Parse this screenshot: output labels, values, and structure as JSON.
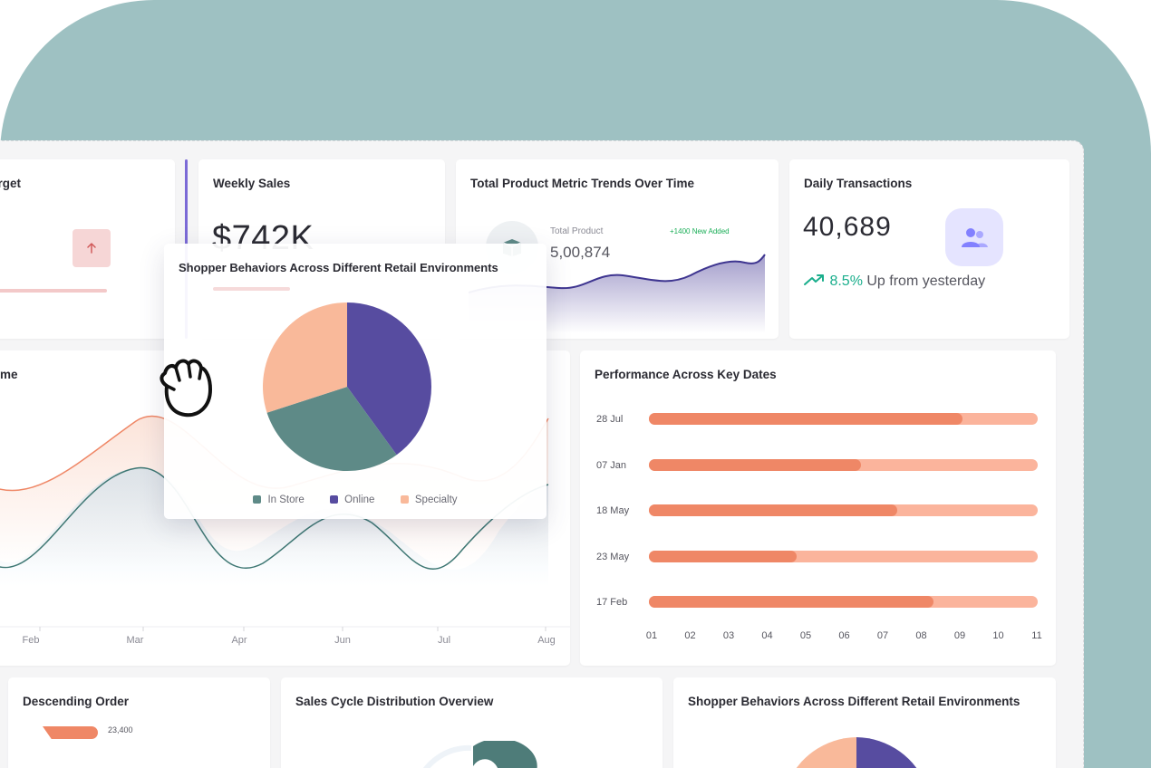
{
  "colors": {
    "backdrop": "#9ec1c2",
    "accent": "#7b6ad6",
    "teal": "#5e8a87",
    "purple": "#574ca0",
    "peach": "#f9b99a",
    "bar_fill": "#ef8766",
    "bar_track": "#fbb49c",
    "success": "#1aae8c"
  },
  "cards": {
    "target": {
      "title": "Target",
      "visible_title": "arget",
      "icon": "arrow-up-icon"
    },
    "weekly_sales": {
      "title": "Weekly Sales",
      "value": "$742K"
    },
    "trends": {
      "title": "Total Product Metric Trends Over Time",
      "icon": "box-icon",
      "label": "Total Product",
      "value": "5,00,874",
      "badge": "+1400 New Added"
    },
    "daily": {
      "title": "Daily Transactions",
      "value": "40,689",
      "icon": "users-icon",
      "change": "8.5%",
      "change_text": "Up from yesterday",
      "trend_icon": "trend-up-icon"
    },
    "over_time": {
      "title": "me",
      "months": [
        "Feb",
        "Mar",
        "Apr",
        "Jun",
        "Jul",
        "Aug"
      ]
    },
    "performance": {
      "title": "Performance Across Key Dates"
    },
    "descending": {
      "title": "Descending Order",
      "first_value": "23,400"
    },
    "cycle": {
      "title": "Sales Cycle Distribution Overview"
    },
    "shopper_bottom": {
      "title": "Shopper Behaviors Across Different Retail Environments"
    }
  },
  "popup": {
    "title": "Shopper Behaviors Across Different Retail Environments",
    "legend": [
      "In Store",
      "Online",
      "Specialty"
    ]
  },
  "cursor": {
    "icon": "grab-hand-icon"
  },
  "chart_data": [
    {
      "type": "pie",
      "title": "Shopper Behaviors Across Different Retail Environments",
      "categories": [
        "In Store",
        "Online",
        "Specialty"
      ],
      "values": [
        30,
        40,
        30
      ],
      "colors": [
        "#5e8a87",
        "#574ca0",
        "#f9b99a"
      ]
    },
    {
      "type": "bar",
      "orientation": "horizontal",
      "title": "Performance Across Key Dates",
      "categories": [
        "28 Jul",
        "07 Jan",
        "18 May",
        "23 May",
        "17 Feb"
      ],
      "values": [
        8.7,
        5.9,
        6.9,
        4.1,
        7.9
      ],
      "xlim": [
        0,
        10.8
      ],
      "xticks": [
        "01",
        "02",
        "03",
        "04",
        "05",
        "06",
        "07",
        "08",
        "09",
        "10",
        "11"
      ]
    }
  ]
}
